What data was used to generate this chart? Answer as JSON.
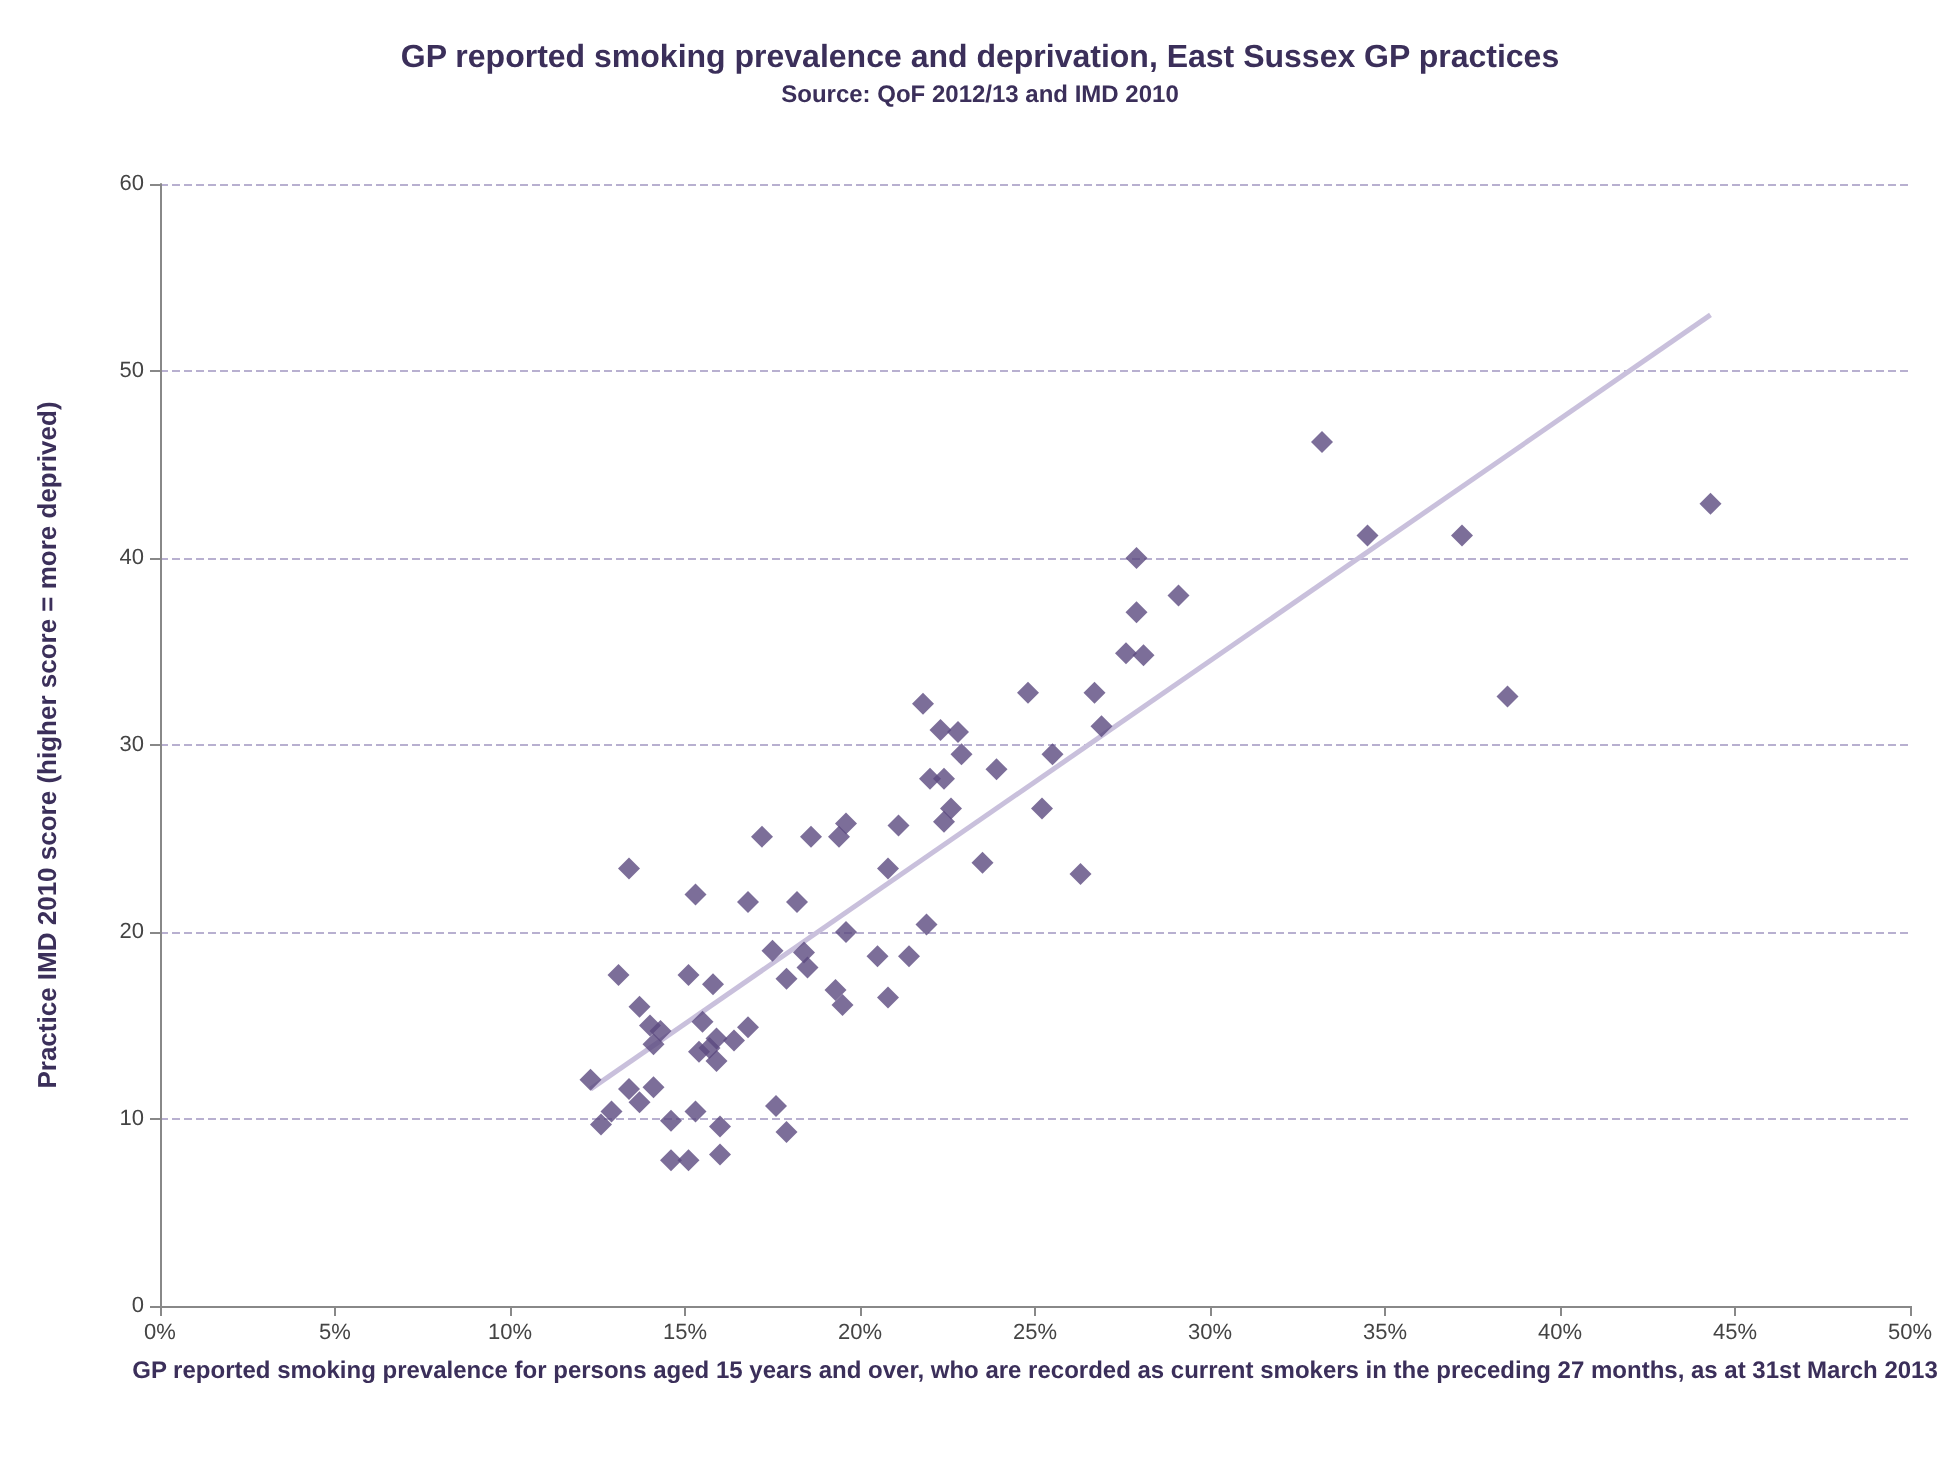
{
  "chart_data": {
    "type": "scatter",
    "title": "GP reported smoking prevalence and deprivation, East Sussex GP practices",
    "subtitle": "Source: QoF 2012/13 and IMD 2010",
    "xlabel": "GP reported smoking prevalence for persons aged 15 years and over, who are recorded as current smokers in the preceding 27 months, as at 31st March 2013",
    "ylabel": "Practice IMD 2010 score (higher score = more deprived)",
    "xlim": [
      0,
      50
    ],
    "xticks": [
      {
        "value": 0,
        "label": "0%"
      },
      {
        "value": 5,
        "label": "5%"
      },
      {
        "value": 10,
        "label": "10%"
      },
      {
        "value": 15,
        "label": "15%"
      },
      {
        "value": 20,
        "label": "20%"
      },
      {
        "value": 25,
        "label": "25%"
      },
      {
        "value": 30,
        "label": "30%"
      },
      {
        "value": 35,
        "label": "35%"
      },
      {
        "value": 40,
        "label": "40%"
      },
      {
        "value": 45,
        "label": "45%"
      },
      {
        "value": 50,
        "label": "50%"
      }
    ],
    "ylim": [
      0,
      60
    ],
    "yticks": [
      0,
      10,
      20,
      30,
      40,
      50,
      60
    ],
    "grid": "y",
    "marker": "diamond",
    "series": [
      {
        "color": "#5b4a80",
        "x": [
          12.3,
          12.6,
          12.9,
          13.1,
          13.4,
          13.4,
          13.7,
          13.7,
          14.0,
          14.1,
          14.3,
          14.1,
          14.6,
          14.6,
          15.1,
          15.1,
          15.3,
          15.3,
          15.4,
          15.5,
          15.7,
          15.8,
          15.9,
          15.9,
          16.0,
          16.0,
          16.4,
          16.8,
          16.8,
          17.2,
          17.5,
          17.6,
          17.9,
          17.9,
          18.2,
          18.4,
          18.5,
          18.6,
          19.3,
          19.4,
          19.6,
          19.5,
          19.6,
          20.5,
          20.8,
          20.8,
          21.1,
          21.4,
          21.9,
          21.8,
          22.0,
          22.3,
          22.4,
          22.4,
          22.6,
          22.8,
          22.9,
          23.5,
          23.9,
          24.8,
          25.2,
          25.5,
          26.3,
          26.7,
          26.9,
          27.6,
          27.9,
          27.9,
          28.1,
          29.1,
          33.2,
          34.5,
          37.2,
          38.5,
          44.3
        ],
        "values": [
          12.1,
          9.7,
          10.4,
          17.7,
          23.4,
          11.6,
          16.0,
          10.9,
          15.0,
          14.0,
          14.7,
          11.7,
          9.9,
          7.8,
          7.8,
          17.7,
          10.4,
          22.0,
          13.6,
          15.2,
          13.8,
          17.2,
          14.3,
          13.1,
          9.6,
          8.1,
          14.2,
          14.9,
          21.6,
          25.1,
          19.0,
          10.7,
          17.5,
          9.3,
          21.6,
          18.9,
          18.1,
          25.1,
          16.9,
          25.1,
          25.8,
          16.1,
          20.0,
          18.7,
          23.4,
          16.5,
          25.7,
          18.7,
          20.4,
          32.2,
          28.2,
          30.8,
          28.2,
          25.9,
          26.6,
          30.7,
          29.5,
          23.7,
          28.7,
          32.8,
          26.6,
          29.5,
          23.1,
          32.8,
          31.0,
          34.9,
          37.1,
          40.0,
          34.8,
          38.0,
          46.2,
          41.2,
          41.2,
          32.6,
          42.9
        ]
      },
      {
        "type": "line",
        "color": "#c9c0dc",
        "marker": "none",
        "x": [
          12.3,
          44.3
        ],
        "values": [
          11.6,
          53.0
        ]
      }
    ]
  }
}
